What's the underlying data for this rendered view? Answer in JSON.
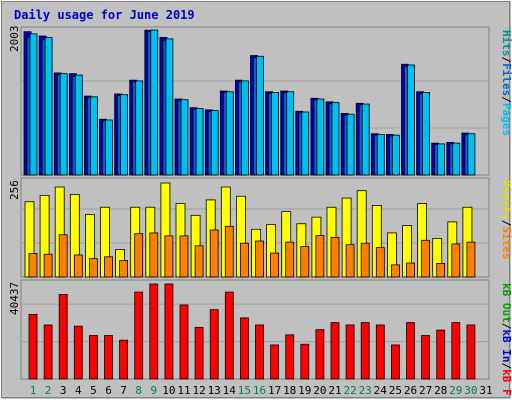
{
  "chart_data": [
    {
      "type": "bar",
      "title": "Daily usage for June 2019",
      "categories": [
        "1",
        "2",
        "3",
        "4",
        "5",
        "6",
        "7",
        "8",
        "9",
        "10",
        "11",
        "12",
        "13",
        "14",
        "15",
        "16",
        "17",
        "18",
        "19",
        "20",
        "21",
        "22",
        "23",
        "24",
        "25",
        "26",
        "27",
        "28",
        "29",
        "30",
        "31"
      ],
      "weekend_days": [
        "1",
        "2",
        "8",
        "9",
        "15",
        "16",
        "22",
        "23",
        "29",
        "30"
      ],
      "y_max_label": "2003",
      "ylim": [
        0,
        2003
      ],
      "axis_labels": [
        "Pages",
        "Files",
        "Hits"
      ],
      "colors": {
        "Pages": "#0000cc",
        "Files": "#0066cc",
        "Hits": "#00c0f0"
      },
      "series": [
        {
          "name": "Hits",
          "values": [
            1950,
            1900,
            1400,
            1380,
            1080,
            760,
            1110,
            1300,
            2003,
            1880,
            1040,
            920,
            890,
            1150,
            1300,
            1640,
            1140,
            1150,
            870,
            1050,
            1000,
            840,
            980,
            560,
            550,
            1520,
            1140,
            430,
            440,
            570,
            null
          ]
        },
        {
          "name": "Files",
          "values": [
            1900,
            1870,
            1390,
            1360,
            1070,
            750,
            1100,
            1290,
            1980,
            1860,
            1030,
            910,
            880,
            1140,
            1290,
            1620,
            1130,
            1140,
            860,
            1040,
            990,
            830,
            970,
            550,
            540,
            1500,
            1120,
            420,
            430,
            560,
            null
          ]
        },
        {
          "name": "Pages",
          "values": [
            1980,
            1920,
            1410,
            1400,
            1090,
            770,
            1120,
            1310,
            2000,
            1900,
            1050,
            930,
            900,
            1160,
            1310,
            1650,
            1150,
            1160,
            880,
            1060,
            1010,
            850,
            990,
            570,
            560,
            1530,
            1150,
            440,
            450,
            580,
            null
          ]
        }
      ]
    },
    {
      "type": "bar",
      "y_max_label": "256",
      "ylim": [
        0,
        256
      ],
      "axis_labels": [
        "Sites",
        "Visits"
      ],
      "colors": {
        "Sites": "#ff8000",
        "Visits": "#ffff00"
      },
      "series": [
        {
          "name": "Visits",
          "values": [
            205,
            222,
            245,
            225,
            170,
            190,
            75,
            190,
            190,
            256,
            200,
            168,
            210,
            245,
            220,
            130,
            143,
            178,
            145,
            163,
            190,
            215,
            235,
            195,
            120,
            140,
            200,
            105,
            150,
            190,
            null
          ]
        },
        {
          "name": "Sites",
          "values": [
            64,
            62,
            115,
            60,
            50,
            55,
            45,
            118,
            120,
            112,
            112,
            85,
            128,
            138,
            92,
            98,
            65,
            95,
            83,
            113,
            108,
            88,
            92,
            80,
            33,
            38,
            100,
            37,
            90,
            95,
            null
          ]
        }
      ]
    },
    {
      "type": "bar",
      "y_max_label": "40437",
      "ylim": [
        0,
        40437
      ],
      "axis_labels": [
        "kB F",
        "kB In",
        "kB Out"
      ],
      "colors": {
        "kB F": "#ff0000",
        "kB In": "#0000cc",
        "kB Out": "#00a000"
      },
      "series": [
        {
          "name": "kB F",
          "values": [
            27500,
            23000,
            36000,
            22500,
            18500,
            18500,
            16500,
            37000,
            40437,
            40437,
            31500,
            22000,
            29500,
            37000,
            26000,
            23000,
            14500,
            18800,
            14800,
            21000,
            24000,
            23000,
            24000,
            23000,
            14500,
            24000,
            18500,
            20800,
            24000,
            23000,
            null
          ]
        }
      ]
    }
  ]
}
